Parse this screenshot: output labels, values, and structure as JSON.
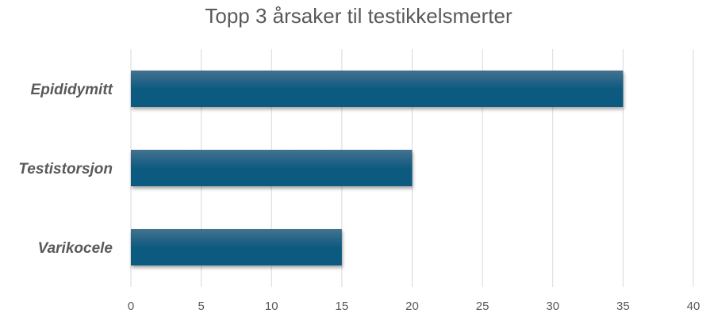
{
  "chart_data": {
    "type": "bar",
    "orientation": "horizontal",
    "title": "Topp 3 årsaker til testikkelsmerter",
    "categories": [
      "Epididymitt",
      "Testistorsjon",
      "Varikocele"
    ],
    "values": [
      35,
      20,
      15
    ],
    "xlim": [
      0,
      40
    ],
    "xticks": [
      0,
      5,
      10,
      15,
      20,
      25,
      30,
      35,
      40
    ],
    "grid": "vertical",
    "bar_color": "#0e5a80",
    "bar_color_top": "#44718f"
  }
}
